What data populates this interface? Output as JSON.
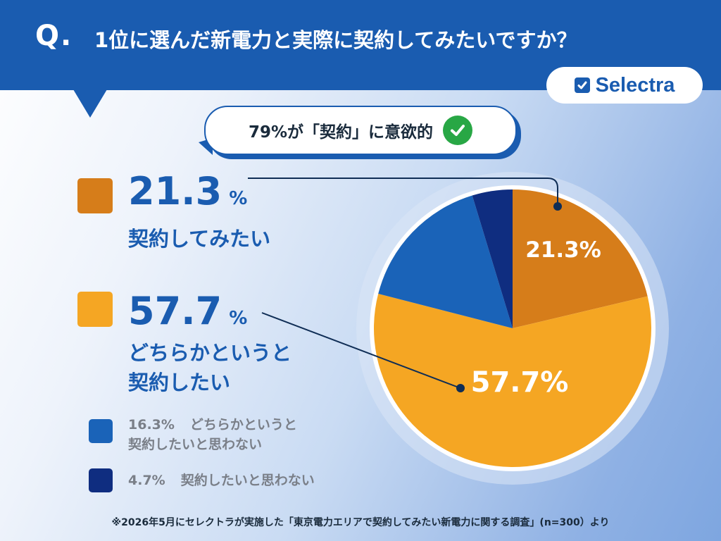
{
  "header": {
    "q_mark": "Q.",
    "title": "1位に選んだ新電力と実際に契約してみたいですか？"
  },
  "logo": {
    "text": "Selectra"
  },
  "callout": {
    "text": "79%が「契約」に意欲的"
  },
  "legend": {
    "item1": {
      "pct": "21.3",
      "unit": "%",
      "label": "契約してみたい"
    },
    "item2": {
      "pct": "57.7",
      "unit": "%",
      "label_line1": "どちらかというと",
      "label_line2": "契約したい"
    },
    "item3": {
      "pct": "16.3%",
      "label_line1": "どちらかというと",
      "label_line2": "契約したいと思わない"
    },
    "item4": {
      "pct": "4.7%",
      "label": "契約したいと思わない"
    }
  },
  "footnote": "※2026年5月にセレクトラが実施した「東京電力エリアで契約してみたい新電力に関する調査」(n=300）より",
  "chart_data": {
    "type": "pie",
    "title": "1位に選んだ新電力と実際に契約してみたいですか？",
    "slices": [
      {
        "label": "契約してみたい",
        "value": 21.3,
        "color": "#d67d1a",
        "data_label": "21.3%"
      },
      {
        "label": "どちらかというと契約したい",
        "value": 57.7,
        "color": "#f5a623",
        "data_label": "57.7%"
      },
      {
        "label": "どちらかというと契約したいと思わない",
        "value": 16.3,
        "color": "#1a63b8",
        "data_label": ""
      },
      {
        "label": "契約したいと思わない",
        "value": 4.7,
        "color": "#0f2d80",
        "data_label": ""
      }
    ],
    "n": 300
  }
}
